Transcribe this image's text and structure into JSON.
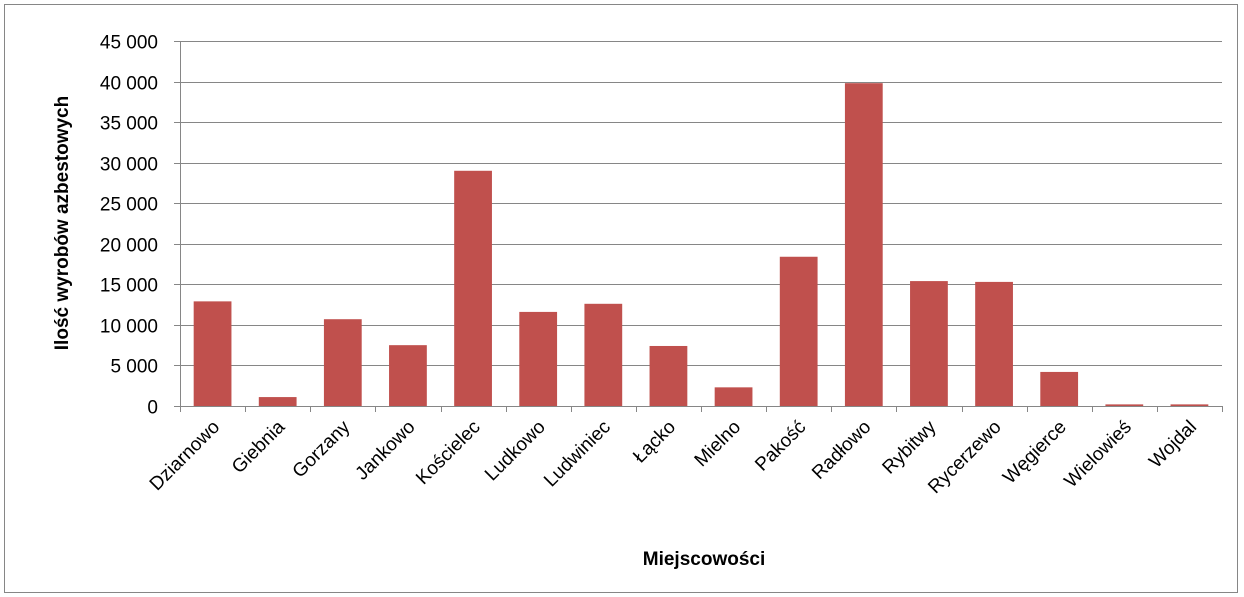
{
  "chart_data": {
    "type": "bar",
    "title": "",
    "xlabel": "Miejscowości",
    "ylabel": "Ilość wyrobów azbestowych",
    "categories": [
      "Dziarnowo",
      "Giebnia",
      "Gorzany",
      "Jankowo",
      "Kościelec",
      "Ludkowo",
      "Ludwiniec",
      "Łącko",
      "Mielno",
      "Pakość",
      "Radłowo",
      "Rybitwy",
      "Rycerzewo",
      "Węgierce",
      "Wielowieś",
      "Wojdal"
    ],
    "values": [
      12900,
      1100,
      10700,
      7500,
      29000,
      11600,
      12600,
      7400,
      2300,
      18400,
      39800,
      15400,
      15300,
      4200,
      200,
      200
    ],
    "ylim": [
      0,
      45000
    ],
    "yticks": [
      "0",
      "5 000",
      "10 000",
      "15 000",
      "20 000",
      "25 000",
      "30 000",
      "35 000",
      "40 000",
      "45 000"
    ],
    "grid": true,
    "legend": "none",
    "colors": {
      "bar": "#c0504d",
      "grid": "#868686",
      "axis": "#868686"
    }
  }
}
